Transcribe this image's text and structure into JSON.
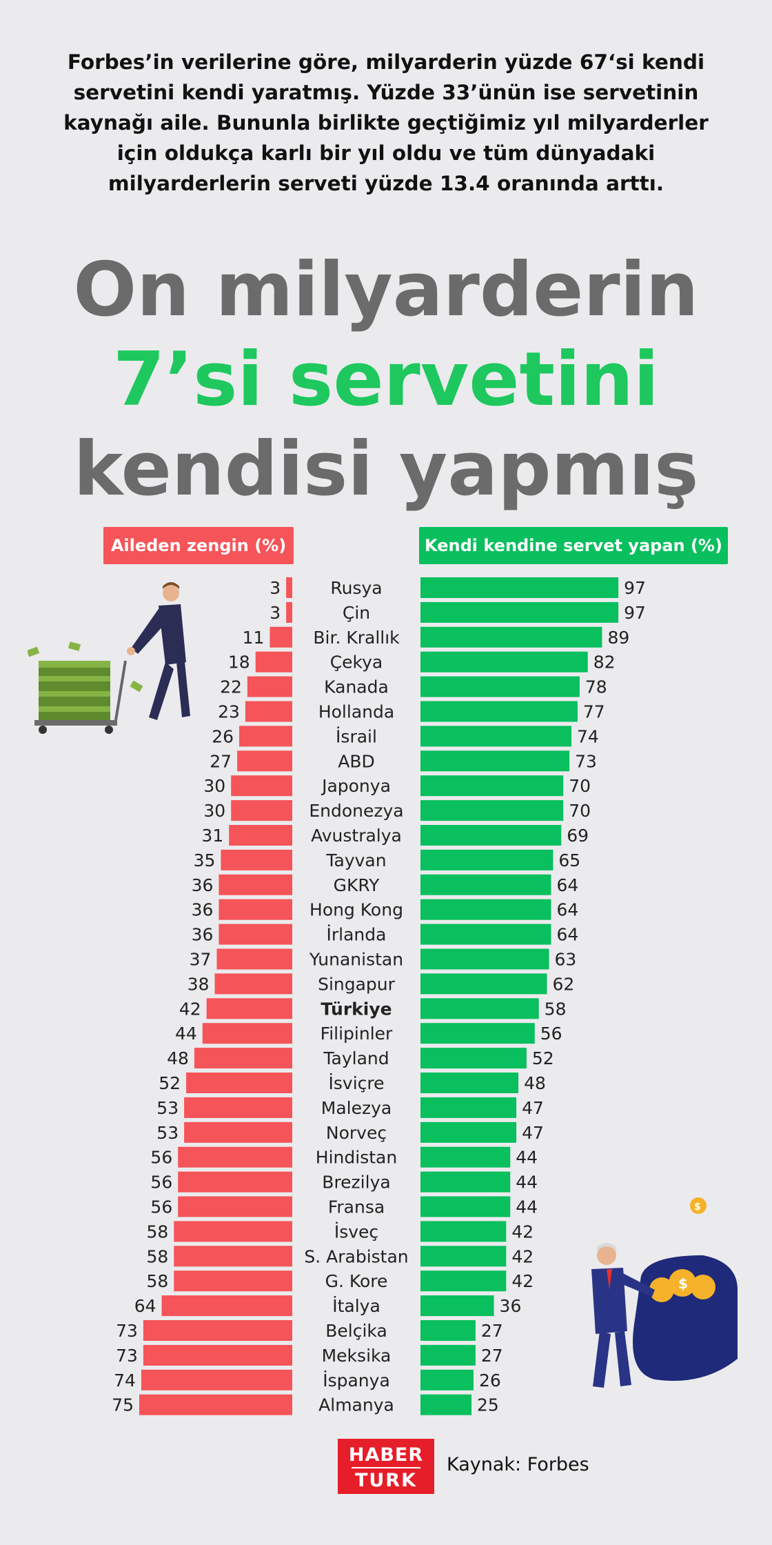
{
  "intro": "Forbes’in verilerine göre, milyarderin yüzde 67‘si kendi servetini kendi yaratmış. Yüzde 33’ünün ise servetinin kaynağı aile. Bununla birlikte geçtiğimiz yıl milyarderler için oldukça karlı bir yıl oldu ve tüm dünyadaki milyarderlerin serveti yüzde 13.4 oranında arttı.",
  "headline": {
    "line1": "On milyarderin",
    "line2": "7’si servetini",
    "line3": "kendisi yapmış"
  },
  "colors": {
    "left": "#f55459",
    "right": "#09bf5e",
    "headline_gray": "#6b6b6b",
    "headline_green": "#1ec85e"
  },
  "icons": {
    "left": "businessman-pushing-money-cart",
    "right": "businessman-with-coin-sack",
    "coin": "dollar-coin-icon"
  },
  "chart_data": {
    "type": "bar",
    "layout": "diverging",
    "categories": [
      "Rusya",
      "Çin",
      "Bir. Krallık",
      "Çekya",
      "Kanada",
      "Hollanda",
      "İsrail",
      "ABD",
      "Japonya",
      "Endonezya",
      "Avustralya",
      "Tayvan",
      "GKRY",
      "Hong Kong",
      "İrlanda",
      "Yunanistan",
      "Singapur",
      "Türkiye",
      "Filipinler",
      "Tayland",
      "İsviçre",
      "Malezya",
      "Norveç",
      "Hindistan",
      "Brezilya",
      "Fransa",
      "İsveç",
      "S. Arabistan",
      "G. Kore",
      "İtalya",
      "Belçika",
      "Meksika",
      "İspanya",
      "Almanya"
    ],
    "highlight": "Türkiye",
    "series": [
      {
        "name": "Aileden zengin (%)",
        "side": "left",
        "values": [
          3,
          3,
          11,
          18,
          22,
          23,
          26,
          27,
          30,
          30,
          31,
          35,
          36,
          36,
          36,
          37,
          38,
          42,
          44,
          48,
          52,
          53,
          53,
          56,
          56,
          56,
          58,
          58,
          58,
          64,
          73,
          73,
          74,
          75
        ]
      },
      {
        "name": "Kendi kendine servet yapan (%)",
        "side": "right",
        "values": [
          97,
          97,
          89,
          82,
          78,
          77,
          74,
          73,
          70,
          70,
          69,
          65,
          64,
          64,
          64,
          63,
          62,
          58,
          56,
          52,
          48,
          47,
          47,
          44,
          44,
          44,
          42,
          42,
          42,
          36,
          27,
          27,
          26,
          25
        ]
      }
    ]
  },
  "footer": {
    "logo_line1": "HABER",
    "logo_line2": "TURK",
    "source": "Kaynak: Forbes"
  }
}
